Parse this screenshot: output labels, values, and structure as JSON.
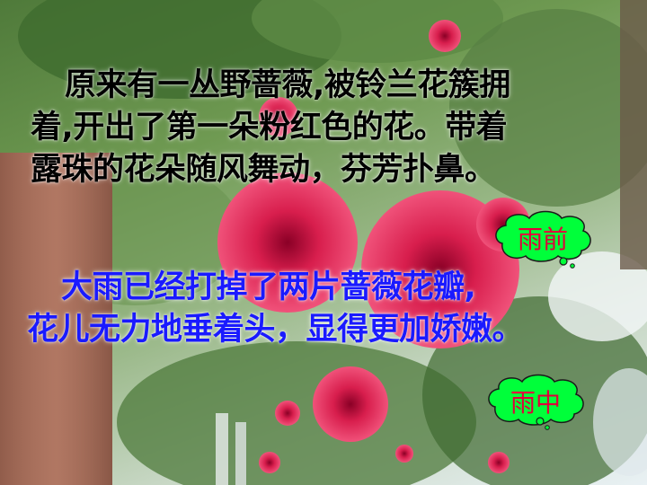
{
  "paragraph_before": {
    "lines": [
      "原来有一丛野蔷薇,被铃兰花簇拥",
      "着,开出了第一朵粉红色的花。带着",
      "露珠的花朵随风舞动，芬芳扑鼻。"
    ]
  },
  "paragraph_during": {
    "lines": [
      "大雨已经打掉了两片蔷薇花瓣,",
      "花儿无力地垂着头，显得更加娇嫩。"
    ]
  },
  "tags": {
    "before_rain": "雨前",
    "during_rain": "雨中"
  },
  "colors": {
    "paragraph_before": "#000000",
    "paragraph_during": "#1a1aff",
    "tag_fill": "#00ff3a",
    "tag_text": "#e0003a"
  }
}
